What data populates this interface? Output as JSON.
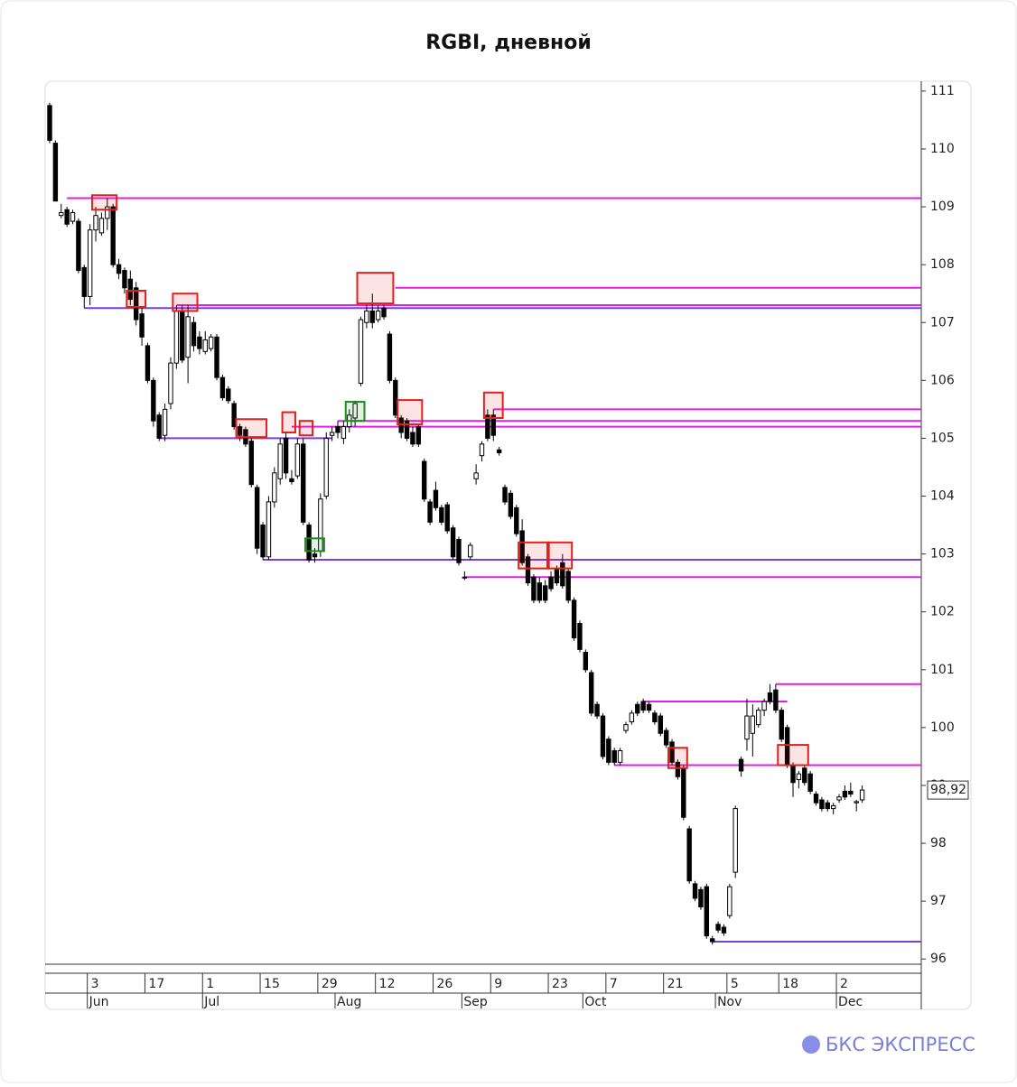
{
  "chart_data": {
    "type": "candlestick",
    "title": "RGBI, дневной",
    "x": [
      "May 23",
      "May 24",
      "May 27",
      "May 28",
      "May 29",
      "May 30",
      "May 31",
      "Jun 3",
      "Jun 4",
      "Jun 5",
      "Jun 6",
      "Jun 7",
      "Jun 10",
      "Jun 11",
      "Jun 12",
      "Jun 13",
      "Jun 14",
      "Jun 17",
      "Jun 18",
      "Jun 19",
      "Jun 20",
      "Jun 21",
      "Jun 24",
      "Jun 25",
      "Jun 26",
      "Jun 27",
      "Jun 28",
      "Jul 1",
      "Jul 2",
      "Jul 3",
      "Jul 4",
      "Jul 5",
      "Jul 8",
      "Jul 9",
      "Jul 10",
      "Jul 11",
      "Jul 12",
      "Jul 15",
      "Jul 16",
      "Jul 17",
      "Jul 18",
      "Jul 19",
      "Jul 22",
      "Jul 23",
      "Jul 24",
      "Jul 25",
      "Jul 26",
      "Jul 29",
      "Jul 30",
      "Jul 31",
      "Aug 1",
      "Aug 2",
      "Aug 5",
      "Aug 6",
      "Aug 7",
      "Aug 8",
      "Aug 9",
      "Aug 12",
      "Aug 13",
      "Aug 14",
      "Aug 15",
      "Aug 16",
      "Aug 19",
      "Aug 20",
      "Aug 21",
      "Aug 22",
      "Aug 23",
      "Aug 26",
      "Aug 27",
      "Aug 28",
      "Aug 29",
      "Aug 30",
      "Sep 2",
      "Sep 3",
      "Sep 4",
      "Sep 5",
      "Sep 6",
      "Sep 9",
      "Sep 10",
      "Sep 11",
      "Sep 12",
      "Sep 13",
      "Sep 16",
      "Sep 17",
      "Sep 18",
      "Sep 19",
      "Sep 20",
      "Sep 23",
      "Sep 24",
      "Sep 25",
      "Sep 26",
      "Sep 27",
      "Sep 30",
      "Oct 1",
      "Oct 2",
      "Oct 3",
      "Oct 4",
      "Oct 7",
      "Oct 8",
      "Oct 9",
      "Oct 10",
      "Oct 11",
      "Oct 14",
      "Oct 15",
      "Oct 16",
      "Oct 17",
      "Oct 18",
      "Oct 21",
      "Oct 22",
      "Oct 23",
      "Oct 24",
      "Oct 25",
      "Oct 28",
      "Oct 29",
      "Oct 30",
      "Oct 31",
      "Nov 1",
      "Nov 4",
      "Nov 5",
      "Nov 6",
      "Nov 7",
      "Nov 8",
      "Nov 11",
      "Nov 12",
      "Nov 13",
      "Nov 14",
      "Nov 15",
      "Nov 18",
      "Nov 19",
      "Nov 20",
      "Nov 21",
      "Nov 22",
      "Nov 25",
      "Nov 26",
      "Nov 27",
      "Nov 28",
      "Nov 29",
      "Dec 2",
      "Dec 3",
      "Dec 4",
      "Dec 5",
      "Dec 6"
    ],
    "ohlc": [
      [
        110.75,
        110.8,
        110.1,
        110.15
      ],
      [
        110.1,
        110.15,
        109.1,
        109.1
      ],
      [
        108.85,
        109.05,
        108.8,
        108.9
      ],
      [
        108.95,
        109.0,
        108.65,
        108.7
      ],
      [
        108.75,
        108.95,
        108.7,
        108.9
      ],
      [
        108.75,
        108.8,
        107.85,
        107.9
      ],
      [
        107.95,
        108.0,
        107.25,
        107.45
      ],
      [
        107.45,
        108.7,
        107.3,
        108.6
      ],
      [
        108.6,
        109.0,
        108.4,
        108.85
      ],
      [
        108.55,
        108.9,
        108.5,
        108.8
      ],
      [
        108.8,
        109.15,
        108.6,
        109.0
      ],
      [
        109.0,
        109.05,
        107.95,
        108.0
      ],
      [
        108.0,
        108.1,
        107.75,
        107.85
      ],
      [
        107.9,
        107.95,
        107.5,
        107.6
      ],
      [
        107.75,
        107.9,
        107.3,
        107.4
      ],
      [
        107.6,
        107.7,
        106.95,
        107.05
      ],
      [
        107.15,
        107.25,
        106.6,
        106.75
      ],
      [
        106.6,
        106.65,
        105.95,
        106.0
      ],
      [
        106.0,
        106.05,
        105.2,
        105.3
      ],
      [
        105.4,
        105.45,
        104.95,
        105.0
      ],
      [
        105.05,
        105.6,
        104.95,
        105.5
      ],
      [
        105.6,
        106.4,
        105.5,
        106.3
      ],
      [
        106.3,
        107.3,
        106.2,
        107.2
      ],
      [
        107.2,
        107.3,
        106.3,
        106.35
      ],
      [
        106.4,
        107.3,
        105.95,
        107.1
      ],
      [
        107.0,
        107.1,
        106.5,
        106.6
      ],
      [
        106.75,
        106.85,
        106.45,
        106.55
      ],
      [
        106.5,
        106.85,
        106.45,
        106.7
      ],
      [
        106.55,
        106.8,
        106.5,
        106.75
      ],
      [
        106.75,
        106.8,
        106.0,
        106.05
      ],
      [
        106.05,
        106.1,
        105.65,
        105.7
      ],
      [
        105.85,
        105.9,
        105.6,
        105.65
      ],
      [
        105.6,
        105.65,
        105.15,
        105.2
      ],
      [
        105.2,
        105.25,
        104.95,
        105.05
      ],
      [
        105.15,
        105.2,
        104.85,
        104.9
      ],
      [
        104.95,
        105.0,
        104.15,
        104.2
      ],
      [
        104.15,
        104.2,
        103.0,
        103.1
      ],
      [
        103.5,
        103.55,
        102.9,
        102.95
      ],
      [
        102.95,
        104.0,
        102.9,
        103.9
      ],
      [
        103.9,
        104.5,
        103.8,
        104.4
      ],
      [
        104.3,
        105.0,
        104.2,
        104.9
      ],
      [
        105.0,
        105.1,
        104.3,
        104.4
      ],
      [
        104.3,
        104.45,
        104.2,
        104.25
      ],
      [
        104.35,
        105.0,
        104.3,
        104.9
      ],
      [
        104.9,
        105.0,
        103.5,
        103.55
      ],
      [
        103.5,
        103.55,
        102.85,
        102.9
      ],
      [
        103.0,
        103.1,
        102.85,
        102.95
      ],
      [
        103.05,
        104.05,
        102.95,
        103.95
      ],
      [
        104.0,
        105.1,
        103.95,
        105.0
      ],
      [
        105.05,
        105.2,
        104.95,
        105.1
      ],
      [
        105.2,
        105.3,
        105.0,
        105.1
      ],
      [
        105.0,
        105.3,
        104.9,
        105.2
      ],
      [
        105.2,
        105.5,
        105.1,
        105.4
      ],
      [
        105.35,
        105.65,
        105.2,
        105.6
      ],
      [
        105.95,
        107.1,
        105.9,
        107.05
      ],
      [
        107.0,
        107.3,
        106.9,
        107.2
      ],
      [
        107.2,
        107.5,
        106.9,
        107.0
      ],
      [
        107.05,
        107.3,
        107.0,
        107.2
      ],
      [
        107.25,
        107.3,
        107.05,
        107.1
      ],
      [
        106.8,
        106.85,
        105.95,
        106.0
      ],
      [
        106.0,
        106.05,
        105.35,
        105.4
      ],
      [
        105.35,
        105.4,
        105.0,
        105.1
      ],
      [
        105.3,
        105.35,
        104.95,
        105.0
      ],
      [
        105.1,
        105.2,
        104.85,
        104.9
      ],
      [
        105.2,
        105.25,
        104.85,
        104.9
      ],
      [
        104.6,
        104.65,
        103.9,
        103.95
      ],
      [
        103.9,
        103.95,
        103.5,
        103.55
      ],
      [
        104.1,
        104.25,
        103.75,
        103.8
      ],
      [
        103.8,
        103.85,
        103.5,
        103.55
      ],
      [
        103.85,
        103.9,
        103.35,
        103.4
      ],
      [
        103.45,
        103.5,
        102.9,
        102.95
      ],
      [
        103.25,
        103.3,
        102.8,
        102.85
      ],
      [
        102.6,
        102.7,
        102.55,
        102.6
      ],
      [
        102.95,
        103.2,
        102.9,
        103.15
      ],
      [
        104.3,
        104.55,
        104.2,
        104.4
      ],
      [
        104.7,
        104.95,
        104.6,
        104.9
      ],
      [
        105.4,
        105.5,
        104.95,
        105.0
      ],
      [
        105.4,
        105.5,
        104.95,
        105.05
      ],
      [
        104.8,
        104.85,
        104.7,
        104.75
      ],
      [
        104.15,
        104.2,
        103.85,
        103.9
      ],
      [
        104.05,
        104.1,
        103.6,
        103.65
      ],
      [
        103.8,
        103.85,
        103.3,
        103.35
      ],
      [
        103.4,
        103.6,
        102.8,
        102.85
      ],
      [
        102.95,
        103.0,
        102.45,
        102.5
      ],
      [
        102.6,
        102.65,
        102.15,
        102.2
      ],
      [
        102.5,
        102.6,
        102.15,
        102.2
      ],
      [
        102.45,
        102.55,
        102.15,
        102.2
      ],
      [
        102.6,
        102.7,
        102.35,
        102.4
      ],
      [
        102.75,
        102.8,
        102.45,
        102.5
      ],
      [
        102.85,
        103.0,
        102.4,
        102.45
      ],
      [
        102.7,
        102.75,
        102.15,
        102.2
      ],
      [
        102.2,
        102.25,
        101.5,
        101.55
      ],
      [
        101.8,
        101.85,
        101.3,
        101.35
      ],
      [
        101.3,
        101.35,
        100.95,
        101.0
      ],
      [
        100.95,
        101.0,
        100.2,
        100.25
      ],
      [
        100.4,
        100.45,
        100.15,
        100.2
      ],
      [
        100.2,
        100.25,
        99.45,
        99.5
      ],
      [
        99.8,
        99.85,
        99.35,
        99.4
      ],
      [
        99.6,
        99.65,
        99.35,
        99.4
      ],
      [
        99.4,
        99.65,
        99.35,
        99.6
      ],
      [
        99.95,
        100.1,
        99.9,
        100.05
      ],
      [
        100.1,
        100.3,
        100.05,
        100.25
      ],
      [
        100.4,
        100.45,
        100.2,
        100.25
      ],
      [
        100.45,
        100.5,
        100.25,
        100.3
      ],
      [
        100.4,
        100.45,
        100.25,
        100.3
      ],
      [
        100.25,
        100.3,
        100.05,
        100.1
      ],
      [
        100.2,
        100.25,
        99.85,
        99.9
      ],
      [
        99.95,
        100.0,
        99.65,
        99.7
      ],
      [
        99.75,
        99.8,
        99.35,
        99.4
      ],
      [
        99.4,
        99.45,
        99.1,
        99.15
      ],
      [
        99.3,
        99.35,
        98.4,
        98.45
      ],
      [
        98.25,
        98.3,
        97.3,
        97.35
      ],
      [
        97.3,
        97.35,
        97.0,
        97.05
      ],
      [
        97.2,
        97.25,
        96.85,
        96.9
      ],
      [
        97.25,
        97.3,
        96.35,
        96.4
      ],
      [
        96.35,
        96.4,
        96.25,
        96.3
      ],
      [
        96.6,
        96.65,
        96.45,
        96.5
      ],
      [
        96.55,
        96.6,
        96.4,
        96.45
      ],
      [
        96.75,
        97.3,
        96.7,
        97.25
      ],
      [
        97.5,
        98.65,
        97.4,
        98.6
      ],
      [
        99.45,
        99.5,
        99.15,
        99.25
      ],
      [
        99.8,
        100.5,
        99.6,
        100.2
      ],
      [
        99.9,
        100.4,
        99.5,
        100.2
      ],
      [
        100.05,
        100.35,
        100.0,
        100.3
      ],
      [
        100.3,
        100.5,
        100.2,
        100.45
      ],
      [
        100.6,
        100.75,
        100.4,
        100.45
      ],
      [
        100.65,
        100.75,
        100.25,
        100.3
      ],
      [
        100.3,
        100.35,
        99.75,
        99.8
      ],
      [
        100.0,
        100.05,
        99.3,
        99.35
      ],
      [
        99.35,
        99.4,
        98.8,
        99.05
      ],
      [
        99.1,
        99.25,
        98.95,
        99.2
      ],
      [
        99.3,
        99.35,
        99.0,
        99.05
      ],
      [
        99.2,
        99.25,
        98.85,
        98.9
      ],
      [
        98.85,
        98.9,
        98.65,
        98.7
      ],
      [
        98.75,
        98.8,
        98.55,
        98.6
      ],
      [
        98.7,
        98.75,
        98.55,
        98.6
      ],
      [
        98.6,
        98.7,
        98.5,
        98.65
      ],
      [
        98.75,
        98.85,
        98.7,
        98.8
      ],
      [
        98.9,
        99.0,
        98.75,
        98.8
      ],
      [
        98.9,
        99.05,
        98.8,
        98.85
      ],
      [
        98.7,
        98.75,
        98.55,
        98.72
      ],
      [
        98.75,
        99.0,
        98.7,
        98.92
      ]
    ],
    "last_label": {
      "value": 98.92,
      "label": "98,92"
    },
    "ylim": [
      95.91,
      111.17
    ],
    "yticks": [
      96,
      97,
      98,
      99,
      100,
      101,
      102,
      103,
      104,
      105,
      106,
      107,
      108,
      109,
      110,
      111
    ],
    "xticks": [
      {
        "value": "Jun 3",
        "label": "3"
      },
      {
        "value": "Jun 17",
        "label": "17"
      },
      {
        "value": "Jul 1",
        "label": "1"
      },
      {
        "value": "Jul 15",
        "label": "15"
      },
      {
        "value": "Jul 29",
        "label": "29"
      },
      {
        "value": "Aug 12",
        "label": "12"
      },
      {
        "value": "Aug 26",
        "label": "26"
      },
      {
        "value": "Sep 9",
        "label": "9"
      },
      {
        "value": "Sep 23",
        "label": "23"
      },
      {
        "value": "Oct 7",
        "label": "7"
      },
      {
        "value": "Oct 21",
        "label": "21"
      },
      {
        "value": "Nov 5",
        "label": "5"
      },
      {
        "value": "Nov 18",
        "label": "18"
      },
      {
        "value": "Dec 2",
        "label": "2"
      }
    ],
    "xmonths": [
      {
        "value": "Jun 3",
        "label": "Jun"
      },
      {
        "value": "Jul 1",
        "label": "Jul"
      },
      {
        "value": "Aug 1",
        "label": "Aug"
      },
      {
        "value": "Sep 2",
        "label": "Sep"
      },
      {
        "value": "Oct 1",
        "label": "Oct"
      },
      {
        "value": "Nov 1",
        "label": "Nov"
      },
      {
        "value": "Dec 2",
        "label": "Dec"
      }
    ],
    "levels": [
      {
        "value": 109.15,
        "from": "May 28",
        "color": "#e21ee6"
      },
      {
        "value": 107.6,
        "from": "Aug 15",
        "color": "#e21ee6"
      },
      {
        "value": 107.3,
        "from": "Jun 24",
        "color": "#e21ee6"
      },
      {
        "value": 107.25,
        "from": "May 31",
        "color": "#7a3ddb"
      },
      {
        "value": 105.5,
        "from": "Sep 9",
        "color": "#e21ee6"
      },
      {
        "value": 105.3,
        "from": "Aug 1",
        "color": "#e21ee6"
      },
      {
        "value": 105.2,
        "from": "Jul 22",
        "color": "#e21ee6"
      },
      {
        "value": 105.0,
        "from": "Jun 19",
        "to": "Jul 31",
        "color": "#7a3ddb"
      },
      {
        "value": 102.9,
        "from": "Jul 15",
        "color": "#7a3ddb"
      },
      {
        "value": 102.6,
        "from": "Sep 2",
        "color": "#e21ee6"
      },
      {
        "value": 100.75,
        "from": "Nov 15",
        "color": "#e21ee6"
      },
      {
        "value": 100.45,
        "from": "Oct 15",
        "to": "Nov 19",
        "color": "#e21ee6"
      },
      {
        "value": 99.35,
        "from": "Oct 8",
        "color": "#e21ee6"
      },
      {
        "value": 96.3,
        "from": "Oct 31",
        "color": "#7a3ddb"
      }
    ],
    "boxes": [
      {
        "from": "Jun 4",
        "to": "Jun 7",
        "low": 108.95,
        "high": 109.2,
        "color": "#e0201c"
      },
      {
        "from": "Jun 12",
        "to": "Jun 14",
        "low": 107.27,
        "high": 107.55,
        "color": "#e0201c"
      },
      {
        "from": "Jun 24",
        "to": "Jun 27",
        "low": 107.2,
        "high": 107.5,
        "color": "#e0201c"
      },
      {
        "from": "Jul 9",
        "to": "Jul 15",
        "low": 105.02,
        "high": 105.33,
        "color": "#e0201c"
      },
      {
        "from": "Jul 19",
        "to": "Jul 22",
        "low": 105.1,
        "high": 105.45,
        "color": "#e0201c"
      },
      {
        "from": "Jul 24",
        "to": "Jul 25",
        "low": 105.05,
        "high": 105.3,
        "color": "#e0201c"
      },
      {
        "from": "Jul 25",
        "to": "Jul 29",
        "low": 103.05,
        "high": 103.27,
        "color": "#1a8a1a"
      },
      {
        "from": "Aug 5",
        "to": "Aug 7",
        "low": 105.3,
        "high": 105.63,
        "color": "#1a8a1a"
      },
      {
        "from": "Aug 7",
        "to": "Aug 14",
        "low": 107.33,
        "high": 107.86,
        "color": "#e0201c"
      },
      {
        "from": "Aug 16",
        "to": "Aug 21",
        "low": 105.24,
        "high": 105.66,
        "color": "#e0201c"
      },
      {
        "from": "Sep 6",
        "to": "Sep 10",
        "low": 105.35,
        "high": 105.79,
        "color": "#e0201c"
      },
      {
        "from": "Sep 16",
        "to": "Sep 20",
        "low": 102.75,
        "high": 103.2,
        "color": "#e0201c"
      },
      {
        "from": "Sep 23",
        "to": "Sep 26",
        "low": 102.75,
        "high": 103.2,
        "color": "#e0201c"
      },
      {
        "from": "Oct 22",
        "to": "Oct 24",
        "low": 99.3,
        "high": 99.65,
        "color": "#e0201c"
      },
      {
        "from": "Nov 18",
        "to": "Nov 22",
        "low": 99.35,
        "high": 99.7,
        "color": "#e0201c"
      }
    ]
  },
  "brand": "БКС ЭКСПРЕСС"
}
